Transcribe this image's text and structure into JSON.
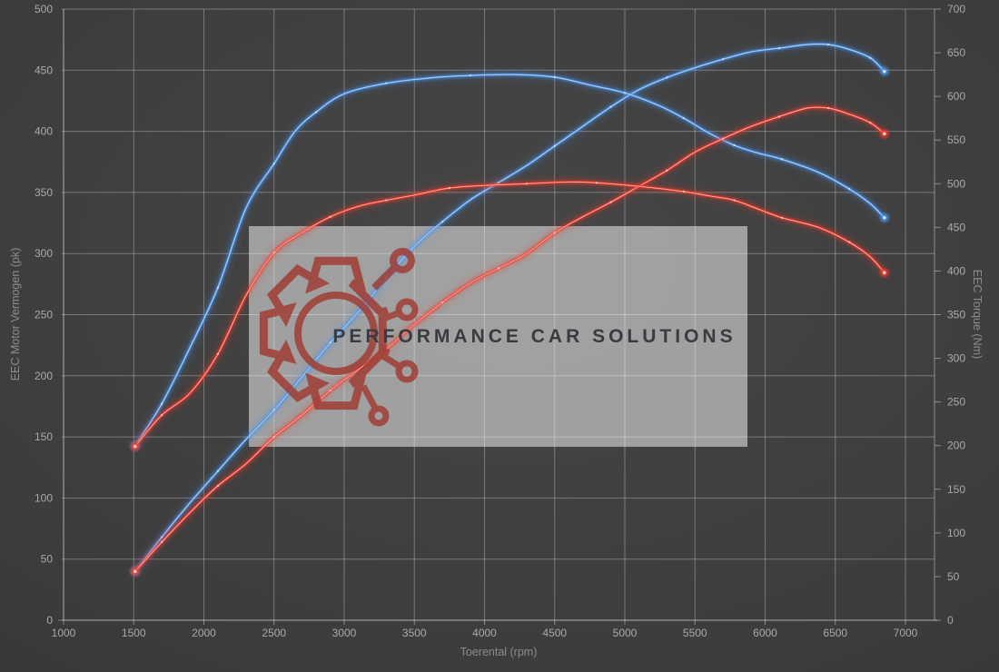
{
  "watermark": {
    "text": "PERFORMANCE CAR SOLUTIONS",
    "logo": "gear-circuit",
    "logo_color": "#9e3a31",
    "text_color": "#383c41",
    "box_color_rgba": "rgba(224,224,224,0.60)"
  },
  "chart_data": {
    "type": "line",
    "title": "",
    "xlabel": "Toerental (rpm)",
    "ylabel_left": "EEC Motor Vermogen (pk)",
    "ylabel_right": "EEC Torque (Nm)",
    "x_axis": {
      "min": 1000,
      "max": 7000,
      "ticks": [
        1000,
        1500,
        2000,
        2500,
        3000,
        3500,
        4000,
        4500,
        5000,
        5500,
        6000,
        6500,
        7000
      ]
    },
    "y_left": {
      "min": 0,
      "max": 500,
      "ticks": [
        0,
        50,
        100,
        150,
        200,
        250,
        300,
        350,
        400,
        450,
        500
      ]
    },
    "y_right": {
      "min": 0,
      "max": 700,
      "ticks": [
        0,
        50,
        100,
        150,
        200,
        250,
        300,
        350,
        400,
        450,
        500,
        550,
        600,
        650,
        700
      ]
    },
    "grid": true,
    "legend": "none",
    "background": "#3c3c3c",
    "grid_color": "rgba(255,255,255,0.30)",
    "tick_label_color": "rgba(255,255,255,0.55)",
    "colors": {
      "blue_run": "#4a93ea",
      "red_run": "#f03a2c"
    },
    "series": [
      {
        "name": "power-blue",
        "unit": "pk",
        "axis": "left",
        "color": "#4a93ea",
        "peak": 471,
        "points": [
          [
            1510,
            40
          ],
          [
            1700,
            68
          ],
          [
            1900,
            96
          ],
          [
            2100,
            122
          ],
          [
            2300,
            148
          ],
          [
            2500,
            172
          ],
          [
            2700,
            199
          ],
          [
            2900,
            227
          ],
          [
            3100,
            252
          ],
          [
            3300,
            280
          ],
          [
            3500,
            306
          ],
          [
            3700,
            326
          ],
          [
            3900,
            344
          ],
          [
            4100,
            358
          ],
          [
            4300,
            372
          ],
          [
            4500,
            388
          ],
          [
            4700,
            404
          ],
          [
            4900,
            420
          ],
          [
            5100,
            434
          ],
          [
            5300,
            444
          ],
          [
            5500,
            452
          ],
          [
            5700,
            459
          ],
          [
            5900,
            465
          ],
          [
            6100,
            468
          ],
          [
            6300,
            471
          ],
          [
            6450,
            471
          ],
          [
            6600,
            467
          ],
          [
            6750,
            460
          ],
          [
            6850,
            449
          ]
        ]
      },
      {
        "name": "torque-blue",
        "unit": "Nm",
        "axis": "right",
        "color": "#4a93ea",
        "peak": 625,
        "points": [
          [
            1510,
            200
          ],
          [
            1700,
            248
          ],
          [
            1900,
            312
          ],
          [
            2100,
            381
          ],
          [
            2300,
            472
          ],
          [
            2500,
            523
          ],
          [
            2650,
            560
          ],
          [
            2800,
            582
          ],
          [
            3000,
            603
          ],
          [
            3300,
            615
          ],
          [
            3600,
            621
          ],
          [
            3900,
            624
          ],
          [
            4200,
            625
          ],
          [
            4500,
            622
          ],
          [
            4750,
            613
          ],
          [
            5000,
            604
          ],
          [
            5250,
            589
          ],
          [
            5420,
            575
          ],
          [
            5600,
            558
          ],
          [
            5780,
            544
          ],
          [
            5950,
            535
          ],
          [
            6120,
            528
          ],
          [
            6380,
            513
          ],
          [
            6600,
            494
          ],
          [
            6750,
            477
          ],
          [
            6850,
            461
          ]
        ]
      },
      {
        "name": "power-red",
        "unit": "pk",
        "axis": "left",
        "color": "#f03a2c",
        "peak": 419,
        "points": [
          [
            1510,
            40
          ],
          [
            1700,
            64
          ],
          [
            1900,
            88
          ],
          [
            2100,
            110
          ],
          [
            2300,
            128
          ],
          [
            2500,
            150
          ],
          [
            2700,
            168
          ],
          [
            2900,
            188
          ],
          [
            3100,
            205
          ],
          [
            3300,
            222
          ],
          [
            3500,
            242
          ],
          [
            3700,
            260
          ],
          [
            3900,
            276
          ],
          [
            4100,
            288
          ],
          [
            4300,
            300
          ],
          [
            4500,
            317
          ],
          [
            4700,
            330
          ],
          [
            4900,
            342
          ],
          [
            5100,
            355
          ],
          [
            5300,
            368
          ],
          [
            5500,
            383
          ],
          [
            5700,
            394
          ],
          [
            5900,
            404
          ],
          [
            6100,
            412
          ],
          [
            6300,
            419
          ],
          [
            6450,
            419
          ],
          [
            6600,
            414
          ],
          [
            6750,
            407
          ],
          [
            6850,
            398
          ]
        ]
      },
      {
        "name": "torque-red",
        "unit": "Nm",
        "axis": "right",
        "color": "#f03a2c",
        "peak": 502,
        "points": [
          [
            1510,
            199
          ],
          [
            1700,
            235
          ],
          [
            1900,
            260
          ],
          [
            2100,
            305
          ],
          [
            2300,
            372
          ],
          [
            2500,
            421
          ],
          [
            2700,
            444
          ],
          [
            2900,
            462
          ],
          [
            3100,
            474
          ],
          [
            3300,
            481
          ],
          [
            3500,
            487
          ],
          [
            3750,
            495
          ],
          [
            4000,
            498
          ],
          [
            4300,
            500
          ],
          [
            4600,
            502
          ],
          [
            4800,
            501
          ],
          [
            5100,
            497
          ],
          [
            5420,
            491
          ],
          [
            5600,
            486
          ],
          [
            5780,
            481
          ],
          [
            5950,
            471
          ],
          [
            6120,
            461
          ],
          [
            6380,
            450
          ],
          [
            6600,
            433
          ],
          [
            6750,
            416
          ],
          [
            6850,
            398
          ]
        ]
      }
    ]
  }
}
